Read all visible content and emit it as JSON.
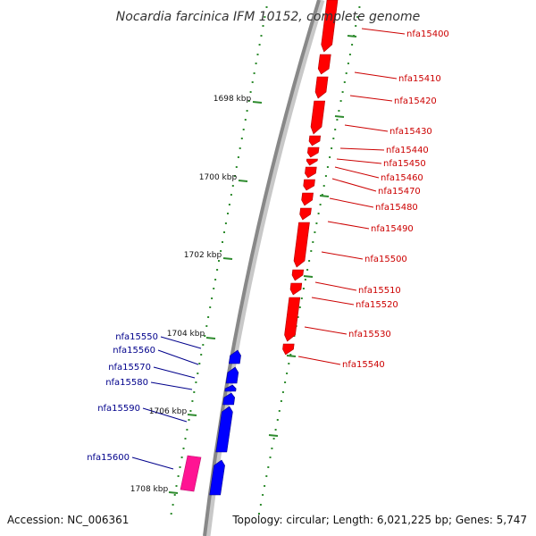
{
  "title": "Nocardia farcinica IFM 10152, complete genome",
  "accession": "Accession: NC_006361",
  "summary": "Topology: circular; Length: 6,021,225 bp; Genes: 5,747",
  "colors": {
    "forward_gene": "#ff0000",
    "reverse_gene": "#0000ff",
    "highlight_gene": "#ff1493",
    "tick": "#2e8b2e",
    "backbone": "#888888",
    "forward_label": "#cc0000",
    "reverse_label": "#00008b"
  },
  "kbp_marks": [
    "1698 kbp",
    "1700 kbp",
    "1702 kbp",
    "1704 kbp",
    "1706 kbp",
    "1708 kbp"
  ],
  "forward_genes": [
    "nfa15400",
    "nfa15410",
    "nfa15420",
    "nfa15430",
    "nfa15440",
    "nfa15450",
    "nfa15460",
    "nfa15470",
    "nfa15480",
    "nfa15490",
    "nfa15500",
    "nfa15510",
    "nfa15520",
    "nfa15530",
    "nfa15540"
  ],
  "reverse_genes": [
    "nfa15550",
    "nfa15560",
    "nfa15570",
    "nfa15580",
    "nfa15590",
    "nfa15600"
  ]
}
